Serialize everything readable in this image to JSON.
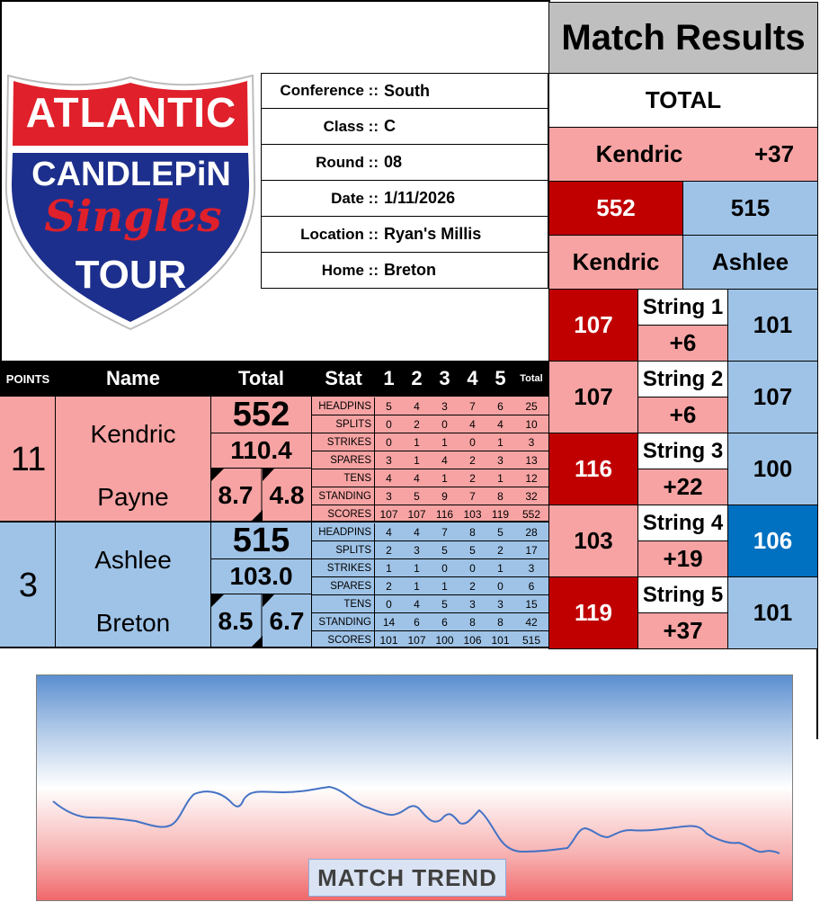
{
  "logo": {
    "line1": "ATLANTIC",
    "line2": "CANDLEPiN",
    "line3": "Singles",
    "line4": "TOUR"
  },
  "info": [
    {
      "label": "Conference ::",
      "value": "South"
    },
    {
      "label": "Class ::",
      "value": "C"
    },
    {
      "label": "Round ::",
      "value": "08"
    },
    {
      "label": "Date ::",
      "value": "1/11/2026"
    },
    {
      "label": "Location ::",
      "value": "Ryan's Millis"
    },
    {
      "label": "Home ::",
      "value": "Breton"
    }
  ],
  "headers": {
    "points": "POINTS",
    "name": "Name",
    "total": "Total",
    "stat": "Stat",
    "g1": "1",
    "g2": "2",
    "g3": "3",
    "g4": "4",
    "g5": "5",
    "gtotal": "Total"
  },
  "player1": {
    "points": "11",
    "first": "Kendric",
    "last": "Payne",
    "total": "552",
    "avg": "110.4",
    "left_stat": "8.7",
    "right_stat": "4.8",
    "stats": [
      {
        "label": "HEADPINS",
        "v": [
          "5",
          "4",
          "3",
          "7",
          "6"
        ],
        "t": "25"
      },
      {
        "label": "SPLITS",
        "v": [
          "0",
          "2",
          "0",
          "4",
          "4"
        ],
        "t": "10"
      },
      {
        "label": "STRIKES",
        "v": [
          "0",
          "1",
          "1",
          "0",
          "1"
        ],
        "t": "3"
      },
      {
        "label": "SPARES",
        "v": [
          "3",
          "1",
          "4",
          "2",
          "3"
        ],
        "t": "13"
      },
      {
        "label": "TENS",
        "v": [
          "4",
          "4",
          "1",
          "2",
          "1"
        ],
        "t": "12"
      },
      {
        "label": "STANDING",
        "v": [
          "3",
          "5",
          "9",
          "7",
          "8"
        ],
        "t": "32"
      },
      {
        "label": "SCORES",
        "v": [
          "107",
          "107",
          "116",
          "103",
          "119"
        ],
        "t": "552"
      }
    ]
  },
  "player2": {
    "points": "3",
    "first": "Ashlee",
    "last": "Breton",
    "total": "515",
    "avg": "103.0",
    "left_stat": "8.5",
    "right_stat": "6.7",
    "stats": [
      {
        "label": "HEADPINS",
        "v": [
          "4",
          "4",
          "7",
          "8",
          "5"
        ],
        "t": "28"
      },
      {
        "label": "SPLITS",
        "v": [
          "2",
          "3",
          "5",
          "5",
          "2"
        ],
        "t": "17"
      },
      {
        "label": "STRIKES",
        "v": [
          "1",
          "1",
          "0",
          "0",
          "1"
        ],
        "t": "3"
      },
      {
        "label": "SPARES",
        "v": [
          "2",
          "1",
          "1",
          "2",
          "0"
        ],
        "t": "6"
      },
      {
        "label": "TENS",
        "v": [
          "0",
          "4",
          "5",
          "3",
          "3"
        ],
        "t": "15"
      },
      {
        "label": "STANDING",
        "v": [
          "14",
          "6",
          "6",
          "8",
          "8"
        ],
        "t": "42"
      },
      {
        "label": "SCORES",
        "v": [
          "101",
          "107",
          "100",
          "106",
          "101"
        ],
        "t": "515"
      }
    ]
  },
  "results": {
    "title": "Match Results",
    "total_label": "TOTAL",
    "leader": "Kendric",
    "margin": "+37",
    "score1": "552",
    "score2": "515",
    "name1": "Kendric",
    "name2": "Ashlee",
    "strings": [
      {
        "label": "String 1",
        "s1": "107",
        "diff": "+6",
        "s2": "101"
      },
      {
        "label": "String 2",
        "s1": "107",
        "diff": "+6",
        "s2": "107"
      },
      {
        "label": "String 3",
        "s1": "116",
        "diff": "+22",
        "s2": "100"
      },
      {
        "label": "String 4",
        "s1": "103",
        "diff": "+19",
        "s2": "106"
      },
      {
        "label": "String 5",
        "s1": "119",
        "diff": "+37",
        "s2": "101"
      }
    ]
  },
  "trend": {
    "label": "MATCH TREND",
    "colors": {
      "line": "#4472c4",
      "top": "#5b8fd0",
      "bottom": "#f0686a"
    }
  }
}
